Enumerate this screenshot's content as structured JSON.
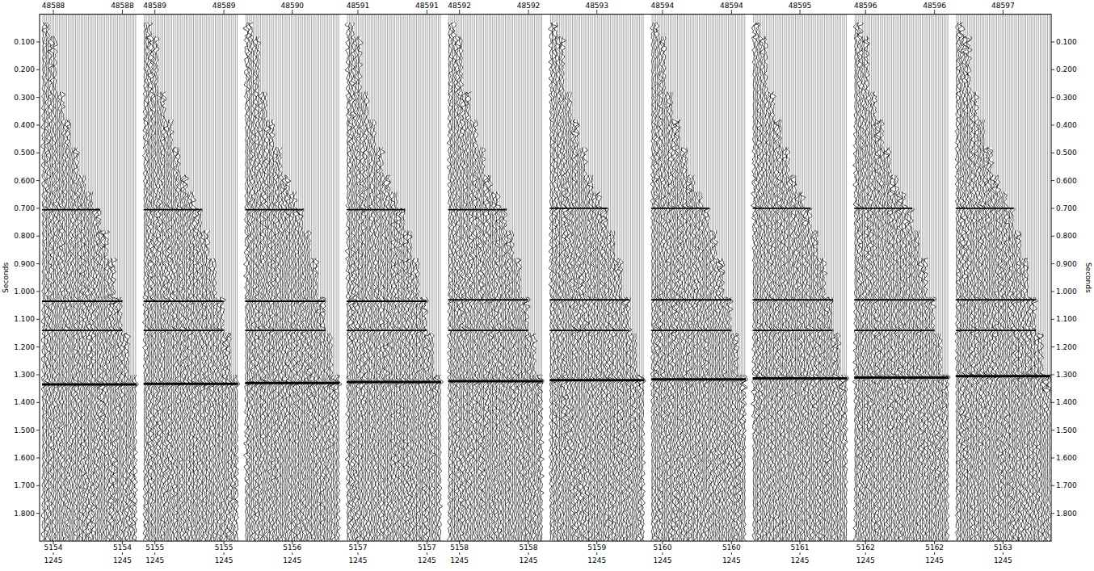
{
  "chart_data": {
    "type": "seismic_wiggle",
    "y_label": "Seconds",
    "ylim": [
      0,
      1.9
    ],
    "yticks": [
      {
        "value": 0.1,
        "label": "0.100"
      },
      {
        "value": 0.2,
        "label": "0.200"
      },
      {
        "value": 0.3,
        "label": "0.300"
      },
      {
        "value": 0.4,
        "label": "0.400"
      },
      {
        "value": 0.5,
        "label": "0.500"
      },
      {
        "value": 0.6,
        "label": "0.600"
      },
      {
        "value": 0.7,
        "label": "0.700"
      },
      {
        "value": 0.8,
        "label": "0.800"
      },
      {
        "value": 0.9,
        "label": "0.900"
      },
      {
        "value": 1.0,
        "label": "1.000"
      },
      {
        "value": 1.1,
        "label": "1.100"
      },
      {
        "value": 1.2,
        "label": "1.200"
      },
      {
        "value": 1.3,
        "label": "1.300"
      },
      {
        "value": 1.4,
        "label": "1.400"
      },
      {
        "value": 1.5,
        "label": "1.500"
      },
      {
        "value": 1.6,
        "label": "1.600"
      },
      {
        "value": 1.7,
        "label": "1.700"
      },
      {
        "value": 1.8,
        "label": "1.800"
      }
    ],
    "first_break": [
      0.03,
      0.08,
      0.28,
      0.38,
      0.48,
      0.58,
      0.64,
      0.7,
      0.78,
      0.88,
      1.02,
      1.15,
      1.3
    ],
    "panels": [
      {
        "header": [
          "48588",
          "48588"
        ],
        "footer": [
          "5154",
          "5154"
        ],
        "footer2": [
          "1245",
          "1245"
        ],
        "event_times": [
          0.705,
          1.035,
          1.14,
          1.335
        ]
      },
      {
        "header": [
          "48589",
          "48589"
        ],
        "footer": [
          "5155",
          "5155"
        ],
        "footer2": [
          "1245",
          "1245"
        ],
        "event_times": [
          0.705,
          1.035,
          1.14,
          1.333
        ]
      },
      {
        "header": [
          "48590"
        ],
        "footer": [
          "5156"
        ],
        "footer2": [
          "1245"
        ],
        "event_times": [
          0.705,
          1.035,
          1.14,
          1.33
        ]
      },
      {
        "header": [
          "48591",
          "48591"
        ],
        "footer": [
          "5157",
          "5157"
        ],
        "footer2": [
          "1245",
          "1245"
        ],
        "event_times": [
          0.705,
          1.035,
          1.14,
          1.326
        ]
      },
      {
        "header": [
          "48592",
          "48592"
        ],
        "footer": [
          "5158",
          "5158"
        ],
        "footer2": [
          "1245",
          "1245"
        ],
        "event_times": [
          0.705,
          1.03,
          1.14,
          1.323
        ]
      },
      {
        "header": [
          "48593"
        ],
        "footer": [
          "5159"
        ],
        "footer2": [
          "1245"
        ],
        "event_times": [
          0.7,
          1.03,
          1.14,
          1.32
        ]
      },
      {
        "header": [
          "48594",
          "48594"
        ],
        "footer": [
          "5160",
          "5160"
        ],
        "footer2": [
          "1245",
          "1245"
        ],
        "event_times": [
          0.7,
          1.03,
          1.14,
          1.317
        ]
      },
      {
        "header": [
          "48595"
        ],
        "footer": [
          "5161"
        ],
        "footer2": [
          "1245"
        ],
        "event_times": [
          0.7,
          1.03,
          1.14,
          1.313
        ]
      },
      {
        "header": [
          "48596",
          "48596"
        ],
        "footer": [
          "5162",
          "5162"
        ],
        "footer2": [
          "1245",
          "1245"
        ],
        "event_times": [
          0.7,
          1.03,
          1.14,
          1.31
        ]
      },
      {
        "header": [
          "48597"
        ],
        "footer": [
          "5163"
        ],
        "footer2": [
          "1245"
        ],
        "event_times": [
          0.7,
          1.03,
          1.14,
          1.305
        ]
      }
    ]
  }
}
